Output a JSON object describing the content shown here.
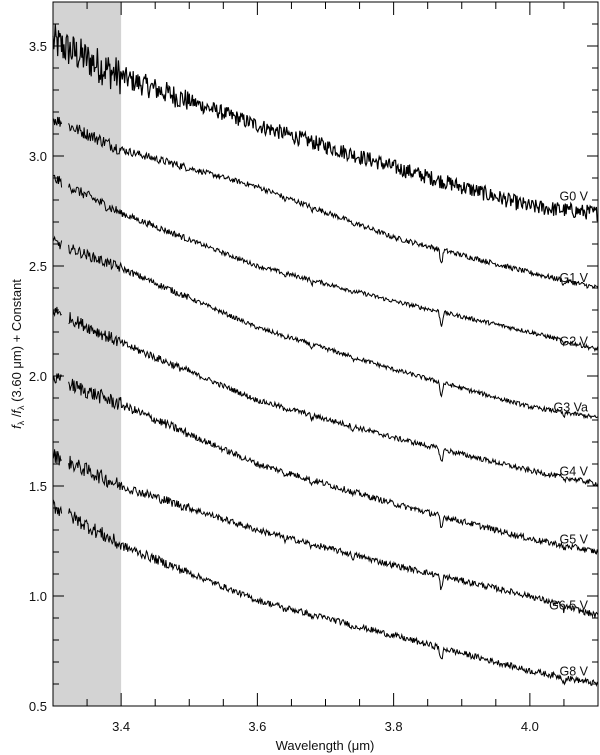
{
  "chart_data": {
    "type": "line",
    "title": "",
    "xlabel": "Wavelength (μm)",
    "ylabel": "f_λ / f_λ (3.60 μm) + Constant",
    "ylabel_parts": {
      "f1": "f",
      "sub1": "λ",
      "slash": " /",
      "f2": "f",
      "sub2": "λ",
      "rest": " (3.60 μm) + Constant"
    },
    "xlim": [
      3.3,
      4.1
    ],
    "ylim": [
      0.5,
      3.7
    ],
    "x_ticks_major": [
      3.4,
      3.6,
      3.8,
      4.0
    ],
    "x_tick_labels": [
      "3.4",
      "3.6",
      "3.8",
      "4.0"
    ],
    "x_ticks_minor_step": 0.05,
    "y_ticks_major": [
      0.5,
      1.0,
      1.5,
      2.0,
      2.5,
      3.0,
      3.5
    ],
    "y_tick_labels": [
      "0.5",
      "1.0",
      "1.5",
      "2.0",
      "2.5",
      "3.0",
      "3.5"
    ],
    "y_ticks_minor_step": 0.1,
    "grid": false,
    "legend": "inline labels at right edge",
    "shaded_region": {
      "x_range": [
        3.3,
        3.4
      ],
      "color": "#d3d3d3"
    },
    "line_color": "#000000",
    "x": [
      3.3,
      3.4,
      3.6,
      3.8,
      4.0,
      4.1
    ],
    "series": [
      {
        "name": "G0 V",
        "values": [
          3.52,
          3.36,
          3.14,
          2.95,
          2.77,
          2.74
        ],
        "label_value": 2.78,
        "noise": 0.035
      },
      {
        "name": "G1 V",
        "values": [
          3.17,
          3.03,
          2.86,
          2.63,
          2.47,
          2.4
        ],
        "label_value": 2.41,
        "noise": 0.012
      },
      {
        "name": "G2 V",
        "values": [
          2.9,
          2.74,
          2.5,
          2.34,
          2.2,
          2.12
        ],
        "label_value": 2.12,
        "noise": 0.01
      },
      {
        "name": "G3 Va",
        "values": [
          2.61,
          2.49,
          2.22,
          2.03,
          1.86,
          1.81
        ],
        "label_value": 1.82,
        "noise": 0.01
      },
      {
        "name": "G4 V",
        "values": [
          2.3,
          2.15,
          1.89,
          1.72,
          1.57,
          1.51
        ],
        "label_value": 1.53,
        "noise": 0.012
      },
      {
        "name": "G5 V",
        "values": [
          1.99,
          1.87,
          1.6,
          1.42,
          1.26,
          1.2
        ],
        "label_value": 1.22,
        "noise": 0.014
      },
      {
        "name": "G6.5 V",
        "values": [
          1.64,
          1.5,
          1.3,
          1.14,
          1.0,
          0.91
        ],
        "label_value": 0.92,
        "noise": 0.014
      },
      {
        "name": "G8 V",
        "values": [
          1.41,
          1.23,
          0.98,
          0.82,
          0.66,
          0.6
        ],
        "label_value": 0.62,
        "noise": 0.014
      }
    ],
    "absorption_features_um": [
      3.64,
      3.68,
      3.74,
      3.87,
      4.05
    ]
  }
}
